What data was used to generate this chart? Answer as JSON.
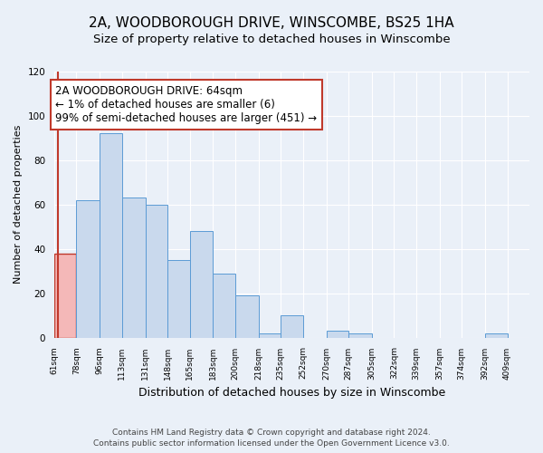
{
  "title": "2A, WOODBOROUGH DRIVE, WINSCOMBE, BS25 1HA",
  "subtitle": "Size of property relative to detached houses in Winscombe",
  "xlabel": "Distribution of detached houses by size in Winscombe",
  "ylabel": "Number of detached properties",
  "bins": [
    61,
    78,
    96,
    113,
    131,
    148,
    165,
    183,
    200,
    218,
    235,
    252,
    270,
    287,
    305,
    322,
    339,
    357,
    374,
    392,
    409
  ],
  "counts": [
    38,
    62,
    92,
    63,
    60,
    35,
    48,
    29,
    19,
    2,
    10,
    0,
    3,
    2,
    0,
    0,
    0,
    0,
    0,
    2
  ],
  "bar_color": "#c9d9ed",
  "bar_edge_color": "#5b9bd5",
  "highlight_bar_color": "#f4b8b8",
  "highlight_bar_edge_color": "#c0392b",
  "property_line_color": "#c0392b",
  "property_size": 64,
  "annotation_text": "2A WOODBOROUGH DRIVE: 64sqm\n← 1% of detached houses are smaller (6)\n99% of semi-detached houses are larger (451) →",
  "annotation_box_color": "#ffffff",
  "annotation_box_edge_color": "#c0392b",
  "ylim": [
    0,
    120
  ],
  "yticks": [
    0,
    20,
    40,
    60,
    80,
    100,
    120
  ],
  "footnote1": "Contains HM Land Registry data © Crown copyright and database right 2024.",
  "footnote2": "Contains public sector information licensed under the Open Government Licence v3.0.",
  "background_color": "#eaf0f8",
  "plot_background_color": "#eaf0f8",
  "grid_color": "#ffffff",
  "title_fontsize": 11,
  "subtitle_fontsize": 9.5,
  "xlabel_fontsize": 9,
  "ylabel_fontsize": 8,
  "annotation_fontsize": 8.5,
  "footnote_fontsize": 6.5
}
